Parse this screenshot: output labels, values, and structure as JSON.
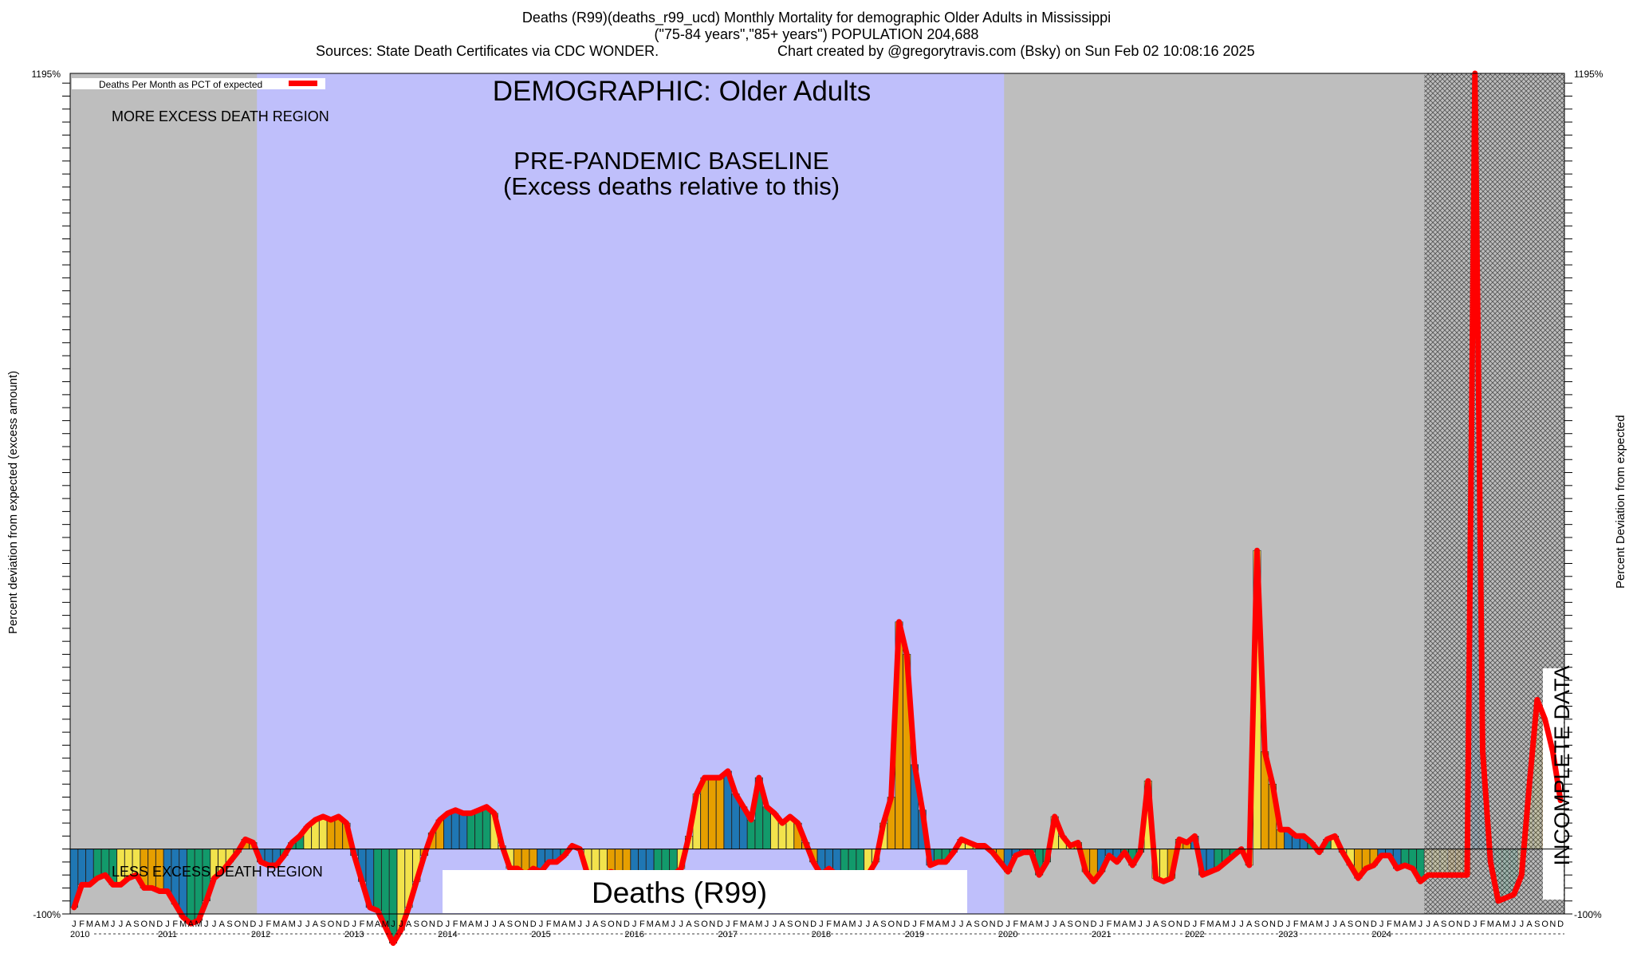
{
  "header": {
    "title": "Deaths (R99)(deaths_r99_ucd) Monthly Mortality for demographic Older Adults in Mississippi",
    "subtitle": "(\"75-84 years\",\"85+ years\") POPULATION 204,688",
    "sources": "Sources: State Death Certificates via CDC WONDER.",
    "credit": "Chart created by @gregorytravis.com (Bsky) on Sun Feb 02 10:08:16 2025"
  },
  "annotations": {
    "legend": "Deaths Per Month as PCT of expected",
    "demographic": "DEMOGRAPHIC: Older Adults",
    "baseline_line1": "PRE-PANDEMIC BASELINE",
    "baseline_line2": "(Excess deaths relative to this)",
    "more_region": "MORE EXCESS DEATH REGION",
    "less_region": "LESS EXCESS DEATH REGION",
    "cause_box": "Deaths (R99)",
    "incomplete": "INCOMPLETE DATA"
  },
  "colors": {
    "shade_gray": "#bebebe",
    "baseline_blue": "#bfbffb",
    "line_red": "#ff0000",
    "bar_blue": "#1f77b4",
    "bar_green": "#129a6b",
    "bar_yellow": "#f2e34c",
    "bar_orange": "#e69f00"
  },
  "chart_data": {
    "type": "bar",
    "ylabel_left": "Percent deviation from expected (excess amount)",
    "ylabel_right": "Percent Deviation from expected",
    "ylim": [
      -100,
      1195
    ],
    "y_bottom_label": "-100%",
    "y_top_label": "1195%",
    "month_letters": [
      "J",
      "F",
      "M",
      "A",
      "M",
      "J",
      "J",
      "A",
      "S",
      "O",
      "N",
      "D"
    ],
    "years": [
      "2010",
      "2011",
      "2012",
      "2013",
      "2014",
      "2015",
      "2016",
      "2017",
      "2018",
      "2019",
      "2020",
      "2021",
      "2022",
      "2023",
      "2024"
    ],
    "baseline_period": [
      "2012-01",
      "2019-12"
    ],
    "incomplete_from": "2024-07",
    "series": [
      {
        "values": [
          -90,
          -55,
          -55,
          -45,
          -40,
          -55,
          -55,
          -45,
          -40,
          -60,
          -60,
          -65,
          -65,
          -85,
          -105,
          -115,
          -110,
          -80,
          -45,
          -35,
          -20,
          -5,
          15,
          10,
          -20,
          -25,
          -25,
          -10,
          10,
          20,
          35,
          45,
          50,
          45,
          50,
          40,
          -10,
          -50,
          -90,
          -95,
          -120,
          -145,
          -125,
          -90,
          -50,
          -10,
          25,
          45,
          55,
          60,
          55,
          55,
          60,
          65,
          55,
          5,
          -30,
          -30,
          -40,
          -30,
          -35,
          -20,
          -20,
          -10,
          5,
          0,
          -40,
          -40,
          -40,
          -35,
          -40,
          -45,
          -40,
          -40,
          -40,
          -40,
          -40,
          -40,
          -30,
          20,
          85,
          110,
          110,
          110,
          120,
          85,
          65,
          45,
          110,
          65,
          55,
          40,
          50,
          40,
          10,
          -20,
          -40,
          -30,
          -40,
          -40,
          -40,
          -40,
          -40,
          -20,
          40,
          80,
          350,
          300,
          130,
          60,
          -25,
          -20,
          -20,
          -5,
          15,
          10,
          5,
          5,
          -5,
          -20,
          -35,
          -10,
          -5,
          -5,
          -40,
          -20,
          50,
          20,
          5,
          10,
          -35,
          -50,
          -35,
          -10,
          -20,
          -5,
          -25,
          -5,
          105,
          -45,
          -50,
          -45,
          15,
          10,
          20,
          -40,
          -35,
          -30,
          -20,
          -10,
          0,
          -25,
          460,
          150,
          100,
          30,
          30,
          20,
          20,
          10,
          -5,
          15,
          20,
          -5,
          -25,
          -45,
          -30,
          -25,
          -10,
          -10,
          -30,
          -25,
          -30,
          -50,
          -40,
          -40,
          -40,
          -40,
          -40,
          -40,
          1195,
          150,
          -20,
          -80,
          -75,
          -70,
          -40,
          100,
          230,
          200,
          150,
          75
        ]
      }
    ]
  }
}
